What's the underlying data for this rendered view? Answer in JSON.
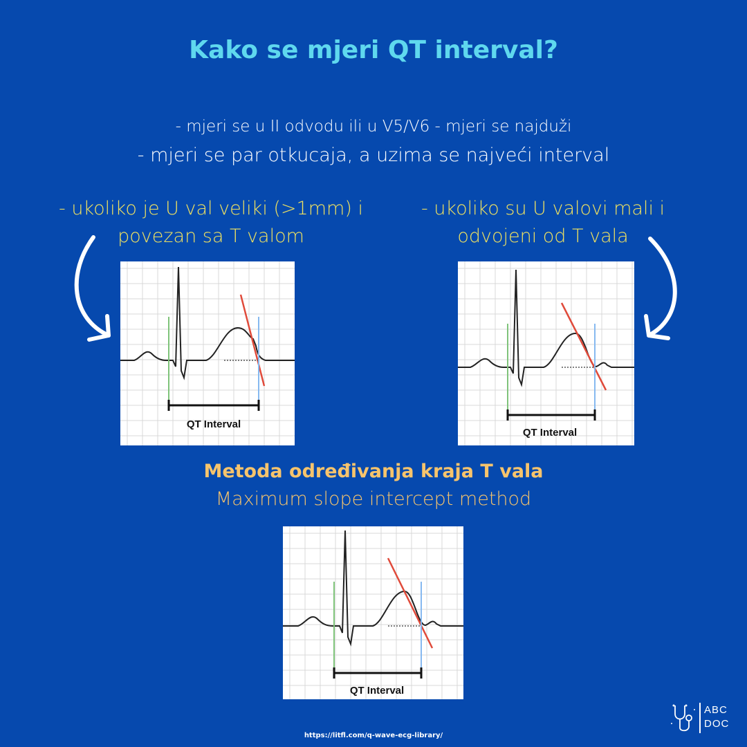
{
  "title": "Kako se mjeri QT interval?",
  "intro": {
    "line1": "- mjeri se u II odvodu ili u V5/V6 - mjeri se najduži",
    "line2": "- mjeri se par otkucaja, a uzima se najveći interval"
  },
  "cases": {
    "left": {
      "line1": "- ukoliko je U val veliki (>1mm) i",
      "line2": "povezan sa T valom"
    },
    "right": {
      "line1": "- ukoliko su U valovi mali i",
      "line2": "odvojeni od T vala"
    }
  },
  "ecg_label": "QT Interval",
  "method": {
    "title": "Metoda određivanja kraja T vala",
    "subtitle": "Maximum slope intercept method"
  },
  "source": "https://litfl.com/q-wave-ecg-library/",
  "logo": {
    "line1": "ABC",
    "line2": "DOC"
  },
  "colors": {
    "background": "#0649ae",
    "title": "#5fd8ee",
    "case_text": "#f1e25f",
    "method_text": "#f7c46c",
    "tangent_line": "#e04a3a",
    "q_marker": "#7fc37a",
    "t_end_marker": "#86b9f0"
  },
  "icons": [
    "curved-arrow-left-icon",
    "curved-arrow-right-icon",
    "stethoscope-icon"
  ]
}
